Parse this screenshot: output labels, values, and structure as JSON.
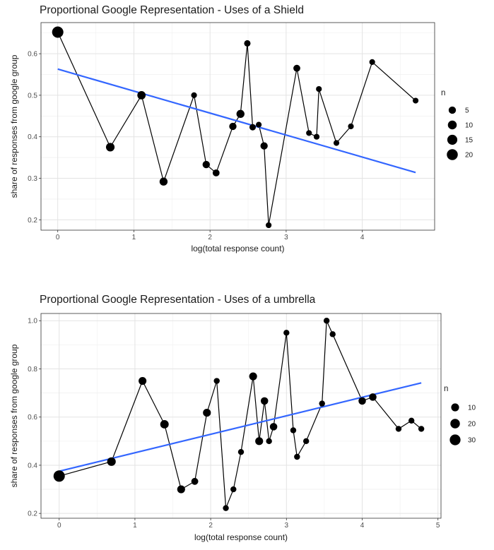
{
  "chart_data": [
    {
      "type": "line",
      "title": "Proportional Google Representation - Uses of a Shield",
      "xlabel": "log(total response count)",
      "ylabel": "share of responses from google group",
      "xlim": [
        -0.22,
        4.95
      ],
      "ylim": [
        0.175,
        0.675
      ],
      "x_ticks": [
        0,
        1,
        2,
        3,
        4
      ],
      "y_ticks": [
        0.2,
        0.3,
        0.4,
        0.5,
        0.6
      ],
      "grid": true,
      "legend": {
        "title": "n",
        "position": "right",
        "entries": [
          5,
          10,
          15,
          20
        ]
      },
      "series": [
        {
          "points": [
            {
              "x": 0.0,
              "y": 0.652,
              "n": 22
            },
            {
              "x": 0.69,
              "y": 0.375,
              "n": 9
            },
            {
              "x": 1.1,
              "y": 0.5,
              "n": 8
            },
            {
              "x": 1.39,
              "y": 0.292,
              "n": 7
            },
            {
              "x": 1.79,
              "y": 0.5,
              "n": 2
            },
            {
              "x": 1.95,
              "y": 0.333,
              "n": 5
            },
            {
              "x": 2.08,
              "y": 0.313,
              "n": 4
            },
            {
              "x": 2.3,
              "y": 0.425,
              "n": 5
            },
            {
              "x": 2.4,
              "y": 0.455,
              "n": 7
            },
            {
              "x": 2.49,
              "y": 0.625,
              "n": 3
            },
            {
              "x": 2.56,
              "y": 0.423,
              "n": 3
            },
            {
              "x": 2.64,
              "y": 0.429,
              "n": 2
            },
            {
              "x": 2.71,
              "y": 0.378,
              "n": 5
            },
            {
              "x": 2.77,
              "y": 0.187,
              "n": 2
            },
            {
              "x": 3.14,
              "y": 0.565,
              "n": 4
            },
            {
              "x": 3.3,
              "y": 0.409,
              "n": 2
            },
            {
              "x": 3.4,
              "y": 0.4,
              "n": 2
            },
            {
              "x": 3.43,
              "y": 0.515,
              "n": 2
            },
            {
              "x": 3.66,
              "y": 0.385,
              "n": 2
            },
            {
              "x": 3.85,
              "y": 0.425,
              "n": 2
            },
            {
              "x": 4.13,
              "y": 0.58,
              "n": 2
            },
            {
              "x": 4.7,
              "y": 0.487,
              "n": 2
            }
          ]
        }
      ],
      "fit_line": {
        "x": [
          0,
          4.7
        ],
        "y": [
          0.563,
          0.314
        ],
        "color": "#3366ff"
      }
    },
    {
      "type": "line",
      "title": "Proportional Google Representation - Uses of a umbrella",
      "xlabel": "log(total response count)",
      "ylabel": "share of responses from google group",
      "xlim": [
        -0.24,
        5.04
      ],
      "ylim": [
        0.18,
        1.03
      ],
      "x_ticks": [
        0,
        1,
        2,
        3,
        4,
        5
      ],
      "y_ticks": [
        0.2,
        0.4,
        0.6,
        0.8,
        1.0
      ],
      "y_tick_labels": [
        "0.2",
        "0.4",
        "0.6",
        "0.8",
        "1.0"
      ],
      "grid": true,
      "legend": {
        "title": "n",
        "position": "right",
        "entries": [
          10,
          20,
          30
        ]
      },
      "series": [
        {
          "points": [
            {
              "x": 0.0,
              "y": 0.355,
              "n": 35
            },
            {
              "x": 0.69,
              "y": 0.415,
              "n": 14
            },
            {
              "x": 1.1,
              "y": 0.75,
              "n": 10
            },
            {
              "x": 1.39,
              "y": 0.57,
              "n": 13
            },
            {
              "x": 1.61,
              "y": 0.3,
              "n": 10
            },
            {
              "x": 1.79,
              "y": 0.333,
              "n": 6
            },
            {
              "x": 1.95,
              "y": 0.618,
              "n": 10
            },
            {
              "x": 2.08,
              "y": 0.75,
              "n": 3
            },
            {
              "x": 2.2,
              "y": 0.222,
              "n": 3
            },
            {
              "x": 2.3,
              "y": 0.3,
              "n": 3
            },
            {
              "x": 2.4,
              "y": 0.455,
              "n": 3
            },
            {
              "x": 2.56,
              "y": 0.769,
              "n": 10
            },
            {
              "x": 2.64,
              "y": 0.5,
              "n": 10
            },
            {
              "x": 2.71,
              "y": 0.667,
              "n": 8
            },
            {
              "x": 2.77,
              "y": 0.5,
              "n": 3
            },
            {
              "x": 2.83,
              "y": 0.56,
              "n": 8
            },
            {
              "x": 3.0,
              "y": 0.95,
              "n": 3
            },
            {
              "x": 3.09,
              "y": 0.545,
              "n": 3
            },
            {
              "x": 3.14,
              "y": 0.435,
              "n": 3
            },
            {
              "x": 3.26,
              "y": 0.5,
              "n": 3
            },
            {
              "x": 3.47,
              "y": 0.656,
              "n": 3
            },
            {
              "x": 3.53,
              "y": 1.0,
              "n": 3
            },
            {
              "x": 3.61,
              "y": 0.944,
              "n": 3
            },
            {
              "x": 4.0,
              "y": 0.667,
              "n": 8
            },
            {
              "x": 4.14,
              "y": 0.683,
              "n": 8
            },
            {
              "x": 4.48,
              "y": 0.551,
              "n": 3
            },
            {
              "x": 4.65,
              "y": 0.585,
              "n": 3
            },
            {
              "x": 4.78,
              "y": 0.551,
              "n": 3
            }
          ]
        }
      ],
      "fit_line": {
        "x": [
          0,
          4.78
        ],
        "y": [
          0.375,
          0.742
        ],
        "color": "#3366ff"
      }
    }
  ]
}
